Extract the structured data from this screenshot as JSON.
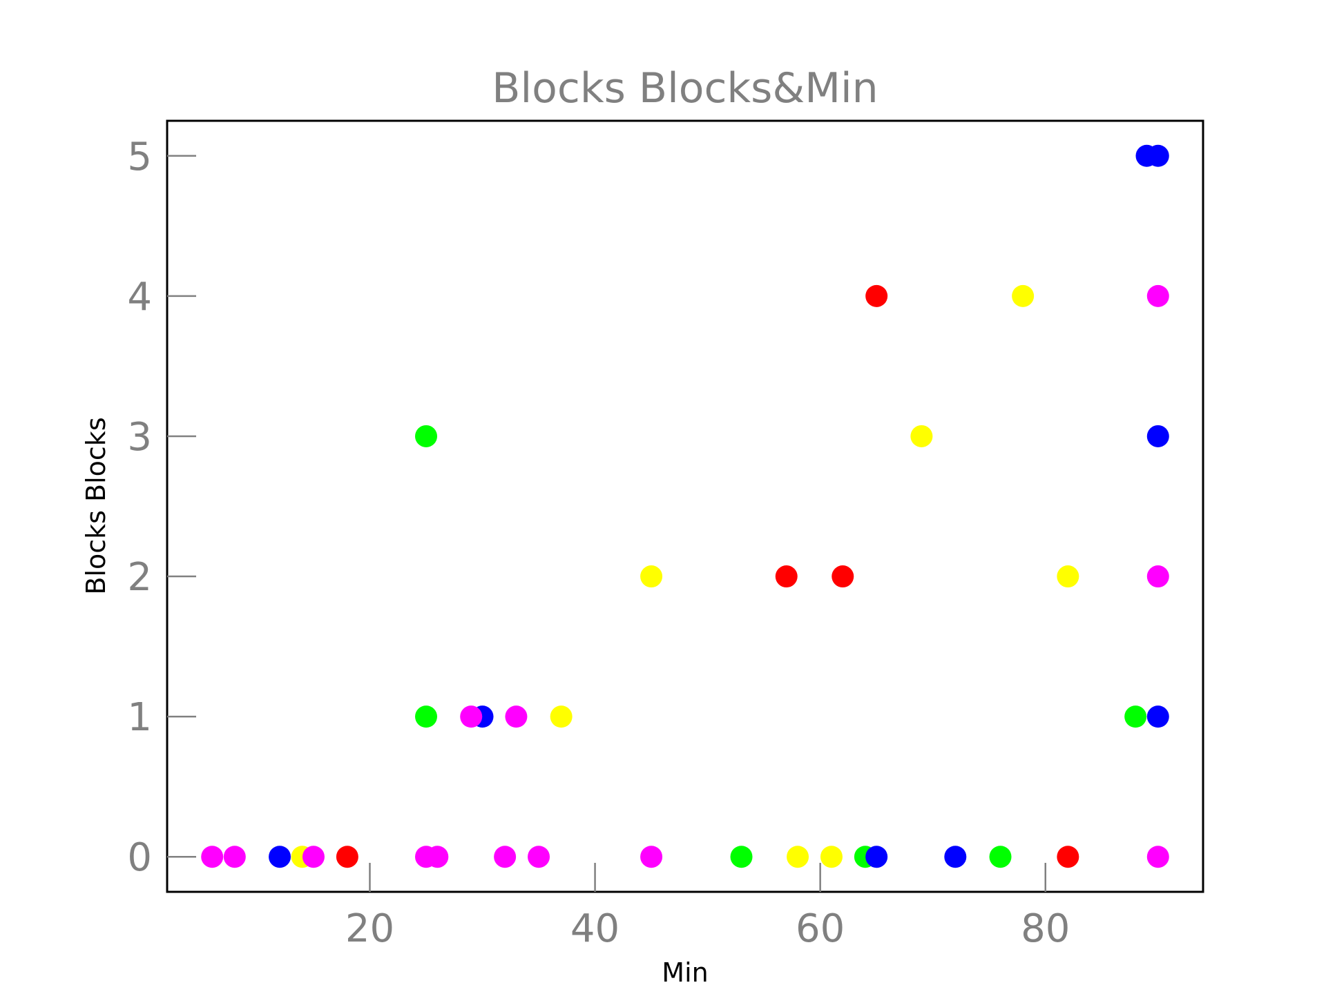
{
  "chart_data": {
    "type": "scatter",
    "title": "Blocks Blocks&Min",
    "xlabel": "Min",
    "ylabel": "Blocks Blocks",
    "xlim": [
      2,
      94
    ],
    "ylim": [
      -0.25,
      5.25
    ],
    "xticks": [
      20,
      40,
      60,
      80
    ],
    "yticks": [
      0,
      1,
      2,
      3,
      4,
      5
    ],
    "grid": false,
    "legend": "none",
    "colors": {
      "red": "#ff0000",
      "green": "#00ff00",
      "blue": "#0000ff",
      "yellow": "#ffff00",
      "magenta": "#ff00ff"
    },
    "points": [
      {
        "x": 6,
        "y": 0,
        "color": "magenta"
      },
      {
        "x": 8,
        "y": 0,
        "color": "magenta"
      },
      {
        "x": 12,
        "y": 0,
        "color": "blue"
      },
      {
        "x": 14,
        "y": 0,
        "color": "yellow"
      },
      {
        "x": 15,
        "y": 0,
        "color": "magenta"
      },
      {
        "x": 18,
        "y": 0,
        "color": "red"
      },
      {
        "x": 25,
        "y": 0,
        "color": "magenta"
      },
      {
        "x": 26,
        "y": 0,
        "color": "magenta"
      },
      {
        "x": 32,
        "y": 0,
        "color": "magenta"
      },
      {
        "x": 35,
        "y": 0,
        "color": "magenta"
      },
      {
        "x": 45,
        "y": 0,
        "color": "magenta"
      },
      {
        "x": 53,
        "y": 0,
        "color": "green"
      },
      {
        "x": 58,
        "y": 0,
        "color": "yellow"
      },
      {
        "x": 61,
        "y": 0,
        "color": "yellow"
      },
      {
        "x": 64,
        "y": 0,
        "color": "green"
      },
      {
        "x": 65,
        "y": 0,
        "color": "blue"
      },
      {
        "x": 72,
        "y": 0,
        "color": "blue"
      },
      {
        "x": 76,
        "y": 0,
        "color": "green"
      },
      {
        "x": 82,
        "y": 0,
        "color": "red"
      },
      {
        "x": 90,
        "y": 0,
        "color": "magenta"
      },
      {
        "x": 25,
        "y": 1,
        "color": "green"
      },
      {
        "x": 30,
        "y": 1,
        "color": "blue"
      },
      {
        "x": 29,
        "y": 1,
        "color": "magenta"
      },
      {
        "x": 33,
        "y": 1,
        "color": "magenta"
      },
      {
        "x": 37,
        "y": 1,
        "color": "yellow"
      },
      {
        "x": 88,
        "y": 1,
        "color": "green"
      },
      {
        "x": 90,
        "y": 1,
        "color": "blue"
      },
      {
        "x": 45,
        "y": 2,
        "color": "yellow"
      },
      {
        "x": 57,
        "y": 2,
        "color": "red"
      },
      {
        "x": 62,
        "y": 2,
        "color": "red"
      },
      {
        "x": 82,
        "y": 2,
        "color": "yellow"
      },
      {
        "x": 90,
        "y": 2,
        "color": "magenta"
      },
      {
        "x": 25,
        "y": 3,
        "color": "green"
      },
      {
        "x": 69,
        "y": 3,
        "color": "yellow"
      },
      {
        "x": 90,
        "y": 3,
        "color": "blue"
      },
      {
        "x": 65,
        "y": 4,
        "color": "red"
      },
      {
        "x": 78,
        "y": 4,
        "color": "yellow"
      },
      {
        "x": 90,
        "y": 4,
        "color": "magenta"
      },
      {
        "x": 89,
        "y": 5,
        "color": "blue"
      },
      {
        "x": 90,
        "y": 5,
        "color": "blue"
      }
    ]
  }
}
